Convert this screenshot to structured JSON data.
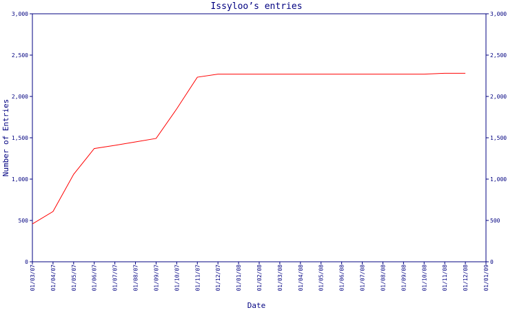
{
  "chart_data": {
    "type": "line",
    "title": "Issyloo’s entries",
    "x_label": "Date",
    "y_label": "Number of Entries",
    "categories": [
      "01/03/07",
      "01/04/07",
      "01/05/07",
      "01/06/07",
      "01/07/07",
      "01/08/07",
      "01/09/07",
      "01/10/07",
      "01/11/07",
      "01/12/07",
      "01/01/08",
      "01/02/08",
      "01/03/08",
      "01/04/08",
      "01/05/08",
      "01/06/08",
      "01/07/08",
      "01/08/08",
      "01/09/08",
      "01/10/08",
      "01/11/08",
      "01/12/08",
      "01/01/09"
    ],
    "series": [
      {
        "name": "Entries",
        "color": "#ff0000",
        "values": [
          458,
          608,
          1058,
          1370,
          1408,
          1450,
          1492,
          1850,
          2233,
          2270,
          2270,
          2270,
          2270,
          2270,
          2270,
          2270,
          2270,
          2270,
          2270,
          2270,
          2280,
          2280,
          null
        ]
      }
    ],
    "ylim": [
      0,
      3000
    ],
    "yticks": [
      0,
      500,
      {
        "value": 1000,
        "label": "1,000"
      },
      {
        "value": 1500,
        "label": "1,500"
      },
      {
        "value": 2000,
        "label": "2,000"
      },
      {
        "value": 2500,
        "label": "2,500"
      },
      {
        "value": 3000,
        "label": "3,000"
      }
    ],
    "axis_color": "#000080"
  }
}
